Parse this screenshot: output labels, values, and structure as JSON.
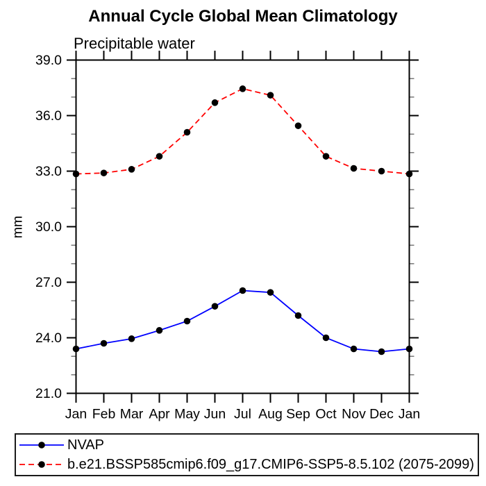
{
  "title": "Annual Cycle Global Mean Climatology",
  "subtitle": "Precipitable water",
  "chart_data": {
    "type": "line",
    "x_categories": [
      "Jan",
      "Feb",
      "Mar",
      "Apr",
      "May",
      "Jun",
      "Jul",
      "Aug",
      "Sep",
      "Oct",
      "Nov",
      "Dec",
      "Jan"
    ],
    "xlabel": "",
    "ylabel": "mm",
    "ylim": [
      21.0,
      39.0
    ],
    "y_major_ticks": [
      21,
      24,
      27,
      30,
      33,
      36,
      39
    ],
    "y_tick_labels": [
      "21.0",
      "24.0",
      "27.0",
      "30.0",
      "33.0",
      "36.0",
      "39.0"
    ],
    "y_minor_tick_step": 1.0,
    "grid": false,
    "legend_position": "bottom-left-box",
    "series": [
      {
        "name": "NVAP",
        "line_color": "#0000ff",
        "line_style": "solid",
        "marker": "filled-circle",
        "marker_color": "#000000",
        "values": [
          23.4,
          23.7,
          23.95,
          24.4,
          24.9,
          25.7,
          26.55,
          26.45,
          25.2,
          24.0,
          23.4,
          23.25,
          23.4
        ]
      },
      {
        "name": "b.e21.BSSP585cmip6.f09_g17.CMIP6-SSP5-8.5.102 (2075-2099)",
        "line_color": "#ff0000",
        "line_style": "dashed",
        "marker": "filled-circle",
        "marker_color": "#000000",
        "values": [
          32.85,
          32.9,
          33.1,
          33.8,
          35.1,
          36.7,
          37.45,
          37.1,
          35.45,
          33.8,
          33.15,
          33.0,
          32.85
        ]
      }
    ]
  },
  "colors": {
    "frame": "#000000",
    "minor_tick": "#555555",
    "text": "#000000",
    "background": "#ffffff"
  }
}
